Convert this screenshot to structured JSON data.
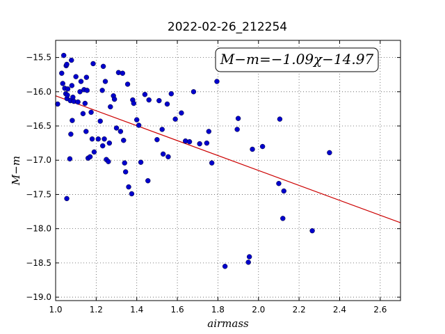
{
  "chart_data": {
    "type": "scatter",
    "title": "2022-02-26_212254",
    "xlabel": "airmass",
    "ylabel": "M−m",
    "xlim": [
      1.0,
      2.7
    ],
    "ylim": [
      -19.05,
      -15.25
    ],
    "x_ticks": [
      1.0,
      1.2,
      1.4,
      1.6,
      1.8,
      2.0,
      2.2,
      2.4,
      2.6
    ],
    "x_tick_labels": [
      "1.0",
      "1.2",
      "1.4",
      "1.6",
      "1.8",
      "2.0",
      "2.2",
      "2.4",
      "2.6"
    ],
    "y_ticks": [
      -15.5,
      -16.0,
      -16.5,
      -17.0,
      -17.5,
      -18.0,
      -18.5,
      -19.0
    ],
    "y_tick_labels": [
      "−15.5",
      "−16.0",
      "−16.5",
      "−17.0",
      "−17.5",
      "−18.0",
      "−18.5",
      "−19.0"
    ],
    "grid": true,
    "annotation": "M−m=−1.09χ−14.97",
    "fit": {
      "slope": -1.09,
      "intercept": -14.97,
      "color": "#cc0000"
    },
    "point_color": "#0000cc",
    "points": [
      [
        1.01,
        -16.18
      ],
      [
        1.03,
        -15.73
      ],
      [
        1.035,
        -15.88
      ],
      [
        1.04,
        -15.47
      ],
      [
        1.045,
        -15.95
      ],
      [
        1.05,
        -16.03
      ],
      [
        1.052,
        -15.62
      ],
      [
        1.055,
        -15.6
      ],
      [
        1.056,
        -16.1
      ],
      [
        1.058,
        -16.05
      ],
      [
        1.06,
        -15.96
      ],
      [
        1.055,
        -17.56
      ],
      [
        1.07,
        -16.98
      ],
      [
        1.073,
        -16.13
      ],
      [
        1.075,
        -16.62
      ],
      [
        1.078,
        -15.54
      ],
      [
        1.08,
        -15.91
      ],
      [
        1.082,
        -16.42
      ],
      [
        1.085,
        -16.08
      ],
      [
        1.09,
        -16.14
      ],
      [
        1.1,
        -15.78
      ],
      [
        1.11,
        -16.15
      ],
      [
        1.12,
        -16.0
      ],
      [
        1.125,
        -15.85
      ],
      [
        1.135,
        -16.32
      ],
      [
        1.14,
        -15.97
      ],
      [
        1.145,
        -16.17
      ],
      [
        1.15,
        -16.58
      ],
      [
        1.152,
        -15.79
      ],
      [
        1.155,
        -15.98
      ],
      [
        1.16,
        -16.97
      ],
      [
        1.17,
        -16.95
      ],
      [
        1.175,
        -16.3
      ],
      [
        1.18,
        -16.69
      ],
      [
        1.185,
        -15.59
      ],
      [
        1.19,
        -16.88
      ],
      [
        1.21,
        -16.69
      ],
      [
        1.22,
        -16.43
      ],
      [
        1.23,
        -15.98
      ],
      [
        1.232,
        -16.79
      ],
      [
        1.235,
        -15.63
      ],
      [
        1.24,
        -16.69
      ],
      [
        1.245,
        -15.85
      ],
      [
        1.25,
        -16.99
      ],
      [
        1.26,
        -17.02
      ],
      [
        1.265,
        -16.75
      ],
      [
        1.27,
        -16.22
      ],
      [
        1.285,
        -16.06
      ],
      [
        1.29,
        -16.11
      ],
      [
        1.3,
        -16.53
      ],
      [
        1.31,
        -15.72
      ],
      [
        1.32,
        -16.58
      ],
      [
        1.33,
        -15.73
      ],
      [
        1.335,
        -16.71
      ],
      [
        1.34,
        -17.04
      ],
      [
        1.345,
        -17.17
      ],
      [
        1.355,
        -15.89
      ],
      [
        1.36,
        -17.39
      ],
      [
        1.375,
        -17.49
      ],
      [
        1.38,
        -16.12
      ],
      [
        1.385,
        -16.17
      ],
      [
        1.4,
        -16.41
      ],
      [
        1.41,
        -16.49
      ],
      [
        1.42,
        -17.03
      ],
      [
        1.44,
        -16.04
      ],
      [
        1.455,
        -17.3
      ],
      [
        1.46,
        -16.12
      ],
      [
        1.5,
        -16.7
      ],
      [
        1.51,
        -16.13
      ],
      [
        1.525,
        -16.55
      ],
      [
        1.53,
        -16.91
      ],
      [
        1.55,
        -16.18
      ],
      [
        1.555,
        -16.95
      ],
      [
        1.57,
        -16.03
      ],
      [
        1.59,
        -16.4
      ],
      [
        1.62,
        -16.31
      ],
      [
        1.64,
        -16.72
      ],
      [
        1.66,
        -16.73
      ],
      [
        1.68,
        -16.0
      ],
      [
        1.71,
        -16.76
      ],
      [
        1.745,
        -16.75
      ],
      [
        1.755,
        -16.58
      ],
      [
        1.77,
        -17.04
      ],
      [
        1.795,
        -15.85
      ],
      [
        1.835,
        -18.55
      ],
      [
        1.895,
        -16.55
      ],
      [
        1.9,
        -16.39
      ],
      [
        1.95,
        -18.49
      ],
      [
        1.955,
        -18.41
      ],
      [
        1.97,
        -16.84
      ],
      [
        2.02,
        -16.8
      ],
      [
        2.1,
        -17.34
      ],
      [
        2.105,
        -16.4
      ],
      [
        2.12,
        -17.85
      ],
      [
        2.125,
        -17.45
      ],
      [
        2.265,
        -18.03
      ],
      [
        2.35,
        -16.89
      ]
    ]
  }
}
